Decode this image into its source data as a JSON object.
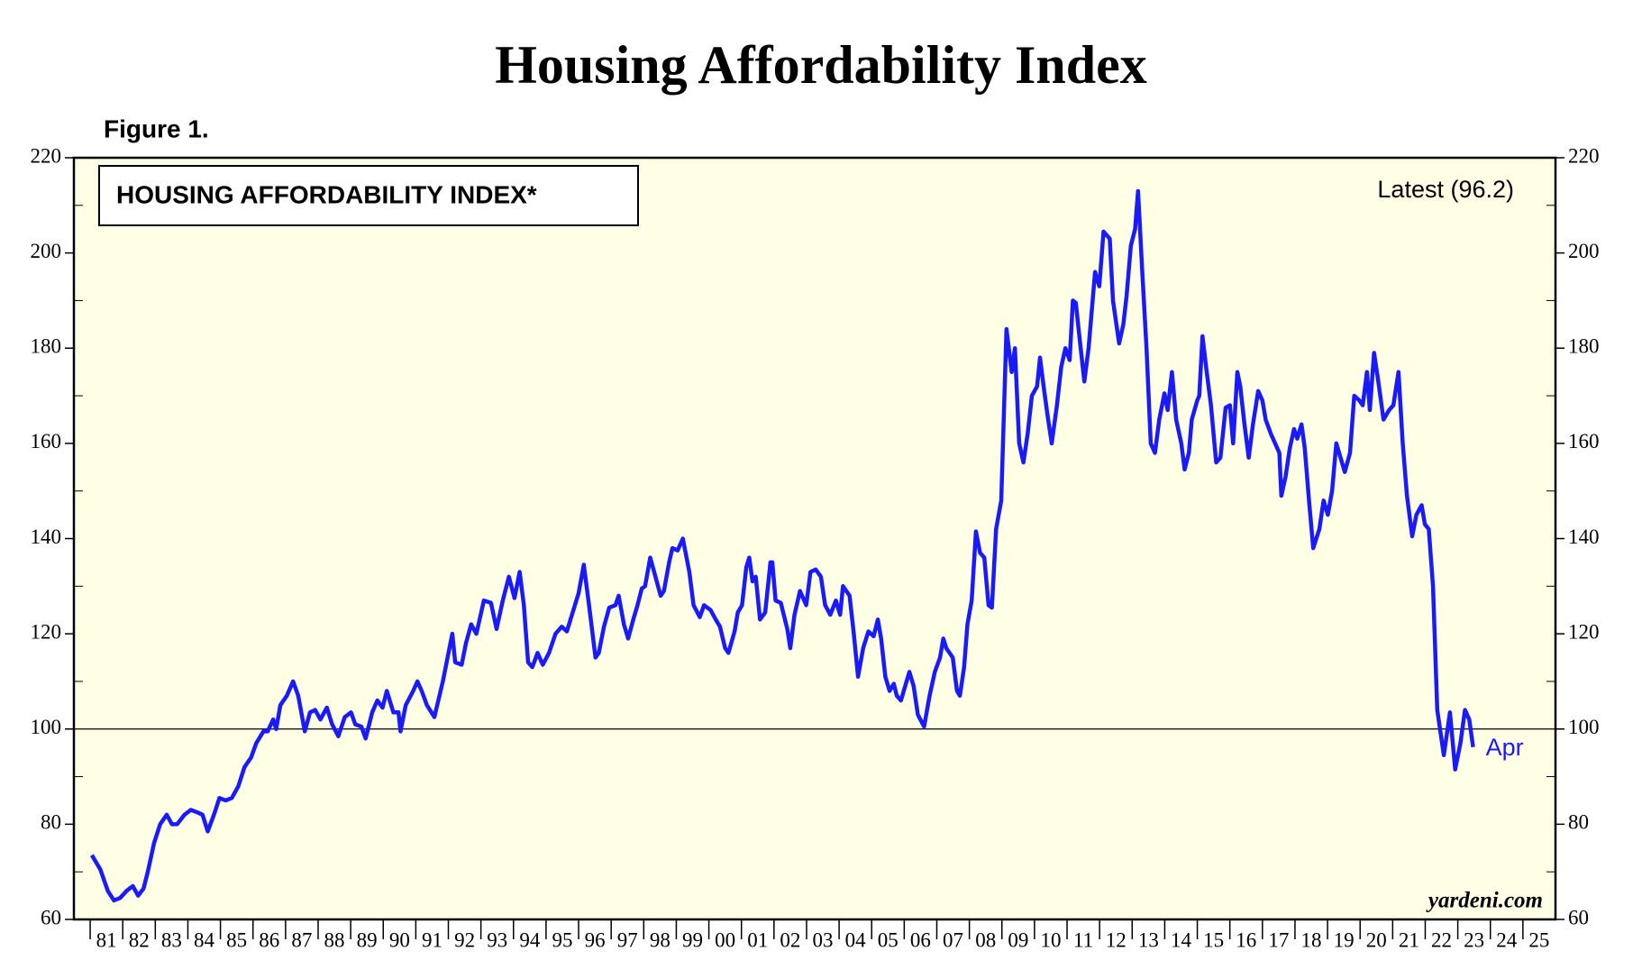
{
  "chart_data": {
    "type": "line",
    "title": "Housing Affordability Index",
    "subtitle": "Figure 1.",
    "label": "HOUSING AFFORDABILITY INDEX*",
    "latest": "Latest (96.2)",
    "end_label": "Apr",
    "source": "yardeni.com",
    "color": "#1a1aff",
    "background": "#ffffe6",
    "hline": 100,
    "xlim": [
      1980.5,
      2026.0
    ],
    "ylim": [
      60,
      220
    ],
    "yticks": [
      60,
      80,
      100,
      120,
      140,
      160,
      180,
      200,
      220
    ],
    "xticks": [
      {
        "value": 1981.5,
        "label": "81"
      },
      {
        "value": 1982.5,
        "label": "82"
      },
      {
        "value": 1983.5,
        "label": "83"
      },
      {
        "value": 1984.5,
        "label": "84"
      },
      {
        "value": 1985.5,
        "label": "85"
      },
      {
        "value": 1986.5,
        "label": "86"
      },
      {
        "value": 1987.5,
        "label": "87"
      },
      {
        "value": 1988.5,
        "label": "88"
      },
      {
        "value": 1989.5,
        "label": "89"
      },
      {
        "value": 1990.5,
        "label": "90"
      },
      {
        "value": 1991.5,
        "label": "91"
      },
      {
        "value": 1992.5,
        "label": "92"
      },
      {
        "value": 1993.5,
        "label": "93"
      },
      {
        "value": 1994.5,
        "label": "94"
      },
      {
        "value": 1995.5,
        "label": "95"
      },
      {
        "value": 1996.5,
        "label": "96"
      },
      {
        "value": 1997.5,
        "label": "97"
      },
      {
        "value": 1998.5,
        "label": "98"
      },
      {
        "value": 1999.5,
        "label": "99"
      },
      {
        "value": 2000.5,
        "label": "00"
      },
      {
        "value": 2001.5,
        "label": "01"
      },
      {
        "value": 2002.5,
        "label": "02"
      },
      {
        "value": 2003.5,
        "label": "03"
      },
      {
        "value": 2004.5,
        "label": "04"
      },
      {
        "value": 2005.5,
        "label": "05"
      },
      {
        "value": 2006.5,
        "label": "06"
      },
      {
        "value": 2007.5,
        "label": "07"
      },
      {
        "value": 2008.5,
        "label": "08"
      },
      {
        "value": 2009.5,
        "label": "09"
      },
      {
        "value": 2010.5,
        "label": "10"
      },
      {
        "value": 2011.5,
        "label": "11"
      },
      {
        "value": 2012.5,
        "label": "12"
      },
      {
        "value": 2013.5,
        "label": "13"
      },
      {
        "value": 2014.5,
        "label": "14"
      },
      {
        "value": 2015.5,
        "label": "15"
      },
      {
        "value": 2016.5,
        "label": "16"
      },
      {
        "value": 2017.5,
        "label": "17"
      },
      {
        "value": 2018.5,
        "label": "18"
      },
      {
        "value": 2019.5,
        "label": "19"
      },
      {
        "value": 2020.5,
        "label": "20"
      },
      {
        "value": 2021.5,
        "label": "21"
      },
      {
        "value": 2022.5,
        "label": "22"
      },
      {
        "value": 2023.5,
        "label": "23"
      },
      {
        "value": 2024.5,
        "label": "24"
      },
      {
        "value": 2025.5,
        "label": "25"
      }
    ],
    "x": [
      1981.05,
      1981.31,
      1981.54,
      1981.73,
      1981.92,
      1982.12,
      1982.31,
      1982.47,
      1982.64,
      1982.77,
      1982.96,
      1983.15,
      1983.35,
      1983.51,
      1983.67,
      1983.9,
      1984.09,
      1984.29,
      1984.45,
      1984.61,
      1984.8,
      1984.97,
      1985.16,
      1985.35,
      1985.55,
      1985.74,
      1985.94,
      1986.1,
      1986.32,
      1986.45,
      1986.62,
      1986.71,
      1986.84,
      1987.04,
      1987.23,
      1987.39,
      1987.59,
      1987.75,
      1987.91,
      1988.07,
      1988.27,
      1988.43,
      1988.62,
      1988.82,
      1989.01,
      1989.14,
      1989.33,
      1989.46,
      1989.66,
      1989.82,
      1989.98,
      1990.11,
      1990.31,
      1990.47,
      1990.53,
      1990.69,
      1990.92,
      1991.05,
      1991.18,
      1991.34,
      1991.57,
      1991.83,
      1992.02,
      1992.12,
      1992.21,
      1992.41,
      1992.54,
      1992.7,
      1992.86,
      1993.09,
      1993.31,
      1993.48,
      1993.67,
      1993.86,
      1994.03,
      1994.19,
      1994.32,
      1994.45,
      1994.58,
      1994.74,
      1994.9,
      1995.09,
      1995.29,
      1995.48,
      1995.64,
      1995.84,
      1996.0,
      1996.16,
      1996.32,
      1996.52,
      1996.62,
      1996.78,
      1996.94,
      1997.13,
      1997.23,
      1997.39,
      1997.52,
      1997.68,
      1997.81,
      1997.94,
      1998.04,
      1998.2,
      1998.36,
      1998.52,
      1998.62,
      1998.78,
      1998.88,
      1999.04,
      1999.2,
      1999.4,
      1999.53,
      1999.72,
      1999.85,
      2000.05,
      2000.21,
      2000.34,
      2000.5,
      2000.6,
      2000.79,
      2000.89,
      2001.02,
      2001.15,
      2001.24,
      2001.34,
      2001.44,
      2001.57,
      2001.73,
      2001.89,
      2001.95,
      2002.05,
      2002.21,
      2002.41,
      2002.5,
      2002.63,
      2002.8,
      2002.99,
      2003.12,
      2003.28,
      2003.44,
      2003.57,
      2003.73,
      2003.9,
      2004.03,
      2004.12,
      2004.32,
      2004.45,
      2004.58,
      2004.74,
      2004.9,
      2005.06,
      2005.19,
      2005.29,
      2005.42,
      2005.55,
      2005.68,
      2005.77,
      2005.9,
      2006.03,
      2006.16,
      2006.29,
      2006.42,
      2006.61,
      2006.78,
      2006.94,
      2007.1,
      2007.2,
      2007.29,
      2007.49,
      2007.62,
      2007.71,
      2007.84,
      2007.94,
      2008.07,
      2008.2,
      2008.33,
      2008.46,
      2008.59,
      2008.69,
      2008.82,
      2008.98,
      2009.14,
      2009.3,
      2009.4,
      2009.53,
      2009.66,
      2009.79,
      2009.92,
      2010.08,
      2010.17,
      2010.3,
      2010.4,
      2010.53,
      2010.69,
      2010.82,
      2010.95,
      2011.08,
      2011.18,
      2011.27,
      2011.37,
      2011.53,
      2011.66,
      2011.86,
      2011.99,
      2012.12,
      2012.31,
      2012.41,
      2012.6,
      2012.73,
      2012.83,
      2012.96,
      2013.09,
      2013.18,
      2013.31,
      2013.44,
      2013.57,
      2013.7,
      2013.83,
      2013.99,
      2014.09,
      2014.22,
      2014.35,
      2014.51,
      2014.61,
      2014.74,
      2014.83,
      2015.0,
      2015.06,
      2015.16,
      2015.29,
      2015.42,
      2015.58,
      2015.71,
      2015.87,
      2016.0,
      2016.1,
      2016.23,
      2016.32,
      2016.45,
      2016.58,
      2016.71,
      2016.87,
      2017.0,
      2017.1,
      2017.26,
      2017.39,
      2017.52,
      2017.58,
      2017.71,
      2017.84,
      2017.97,
      2018.07,
      2018.2,
      2018.3,
      2018.43,
      2018.56,
      2018.75,
      2018.88,
      2019.01,
      2019.14,
      2019.27,
      2019.4,
      2019.53,
      2019.69,
      2019.82,
      2019.98,
      2020.08,
      2020.21,
      2020.3,
      2020.43,
      2020.56,
      2020.72,
      2020.89,
      2021.02,
      2021.18,
      2021.31,
      2021.44,
      2021.6,
      2021.73,
      2021.89,
      2021.99,
      2022.11,
      2022.24,
      2022.37,
      2022.57,
      2022.76,
      2022.92,
      2023.08,
      2023.22,
      2023.35,
      2023.47
    ],
    "values": [
      73.5,
      70.5,
      66,
      64,
      64.5,
      66,
      67,
      65,
      66.5,
      70,
      76,
      80,
      82,
      80,
      80,
      82,
      83,
      82.5,
      82,
      78.5,
      82,
      85.5,
      85,
      85.5,
      88,
      92,
      94,
      97,
      99.5,
      99.5,
      102,
      100,
      105,
      107,
      110,
      107,
      99.5,
      103.5,
      104,
      102,
      104.5,
      101,
      98.5,
      102.5,
      103.5,
      101,
      100.5,
      98,
      103.5,
      106,
      104.5,
      108,
      103.5,
      103.5,
      99.5,
      105,
      108,
      110,
      108,
      105,
      102.5,
      110,
      116.5,
      120,
      114,
      113.5,
      118,
      122,
      120,
      127,
      126.5,
      121,
      127,
      132,
      127.5,
      133,
      126,
      114,
      113,
      116,
      113.5,
      116,
      120,
      121.5,
      120.5,
      125,
      128.5,
      134.5,
      126,
      115,
      116,
      121.5,
      125.5,
      126,
      128,
      122,
      119,
      123,
      126,
      129.5,
      130,
      136,
      132,
      128,
      129,
      135,
      138,
      137.5,
      140,
      133,
      126,
      123.5,
      126,
      125,
      123,
      121.5,
      117,
      116,
      120.5,
      124.5,
      126,
      134,
      136,
      131,
      132,
      123,
      124.5,
      135,
      135,
      127,
      126.5,
      121,
      117,
      124,
      129,
      126,
      133,
      133.5,
      132,
      126,
      124,
      127,
      124,
      130,
      128,
      120,
      111,
      117,
      120.5,
      119.5,
      123,
      119,
      111,
      108,
      109.5,
      107,
      106,
      109,
      112,
      109,
      103,
      100.5,
      107,
      112,
      115,
      119,
      117,
      115,
      108,
      107,
      113,
      122,
      127,
      141.5,
      137,
      136,
      126,
      125.5,
      142,
      148,
      184,
      175,
      180,
      160,
      156,
      162,
      170,
      172,
      178,
      171,
      166,
      160,
      168,
      176,
      180,
      177.5,
      190,
      189.5,
      183,
      173,
      180,
      196,
      193,
      204.5,
      203,
      190,
      181,
      185,
      191,
      201.5,
      205,
      213,
      196,
      180,
      160,
      158,
      165,
      170.5,
      167,
      175,
      165,
      160,
      154.5,
      158,
      165,
      169,
      170,
      182.5,
      175,
      168,
      156,
      157,
      167.5,
      168,
      160,
      175,
      172,
      164,
      157,
      164,
      171,
      169,
      165,
      162,
      160,
      158,
      149,
      153,
      159,
      163,
      161,
      164,
      159,
      148,
      138,
      142,
      148,
      145,
      150,
      160,
      157,
      154,
      158,
      170,
      169,
      168,
      175,
      167,
      179,
      173,
      165,
      167,
      168,
      175,
      160,
      149,
      140.5,
      145,
      147,
      143,
      142,
      130,
      104,
      94.5,
      103.5,
      91.5,
      97,
      104,
      102,
      96.2
    ]
  }
}
